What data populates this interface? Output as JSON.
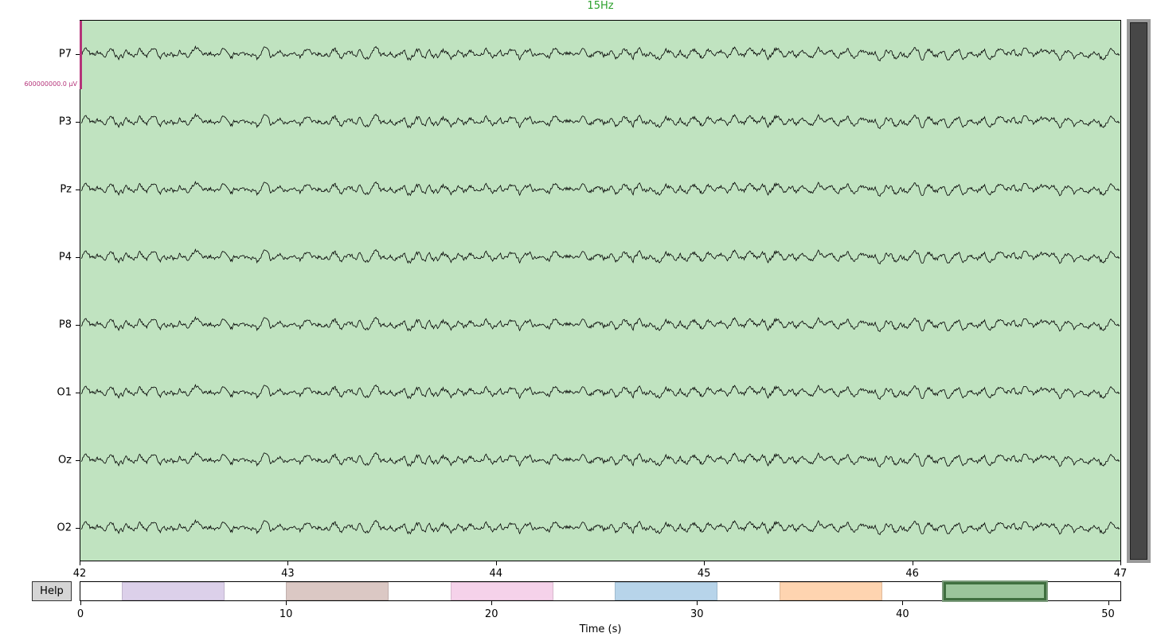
{
  "title": "15Hz",
  "title_color": "#2ca02c",
  "background_color": "#c0e3c0",
  "trace_color": "#000000",
  "scale_bar": {
    "label": "600000000.0 µV",
    "color": "#b5347a"
  },
  "channels": [
    {
      "name": "P7"
    },
    {
      "name": "P3"
    },
    {
      "name": "Pz"
    },
    {
      "name": "P4"
    },
    {
      "name": "P8"
    },
    {
      "name": "O1"
    },
    {
      "name": "Oz"
    },
    {
      "name": "O2"
    }
  ],
  "time_window": {
    "start": 42,
    "end": 47
  },
  "time_ticks": [
    "42",
    "43",
    "44",
    "45",
    "46",
    "47"
  ],
  "help_button": {
    "label": "Help"
  },
  "overview": {
    "range": [
      0,
      50.6
    ],
    "ticks": [
      "0",
      "10",
      "20",
      "30",
      "40",
      "50"
    ],
    "xlabel": "Time (s)",
    "annotations": [
      {
        "start": 2,
        "end": 7,
        "color": "#dcd0ea"
      },
      {
        "start": 10,
        "end": 15,
        "color": "#dbc8c4"
      },
      {
        "start": 18,
        "end": 23,
        "color": "#f5d2ea"
      },
      {
        "start": 26,
        "end": 31,
        "color": "#b7d4ea"
      },
      {
        "start": 34,
        "end": 39,
        "color": "#fed4b0"
      }
    ],
    "view_window": {
      "start": 42,
      "end": 47
    }
  }
}
